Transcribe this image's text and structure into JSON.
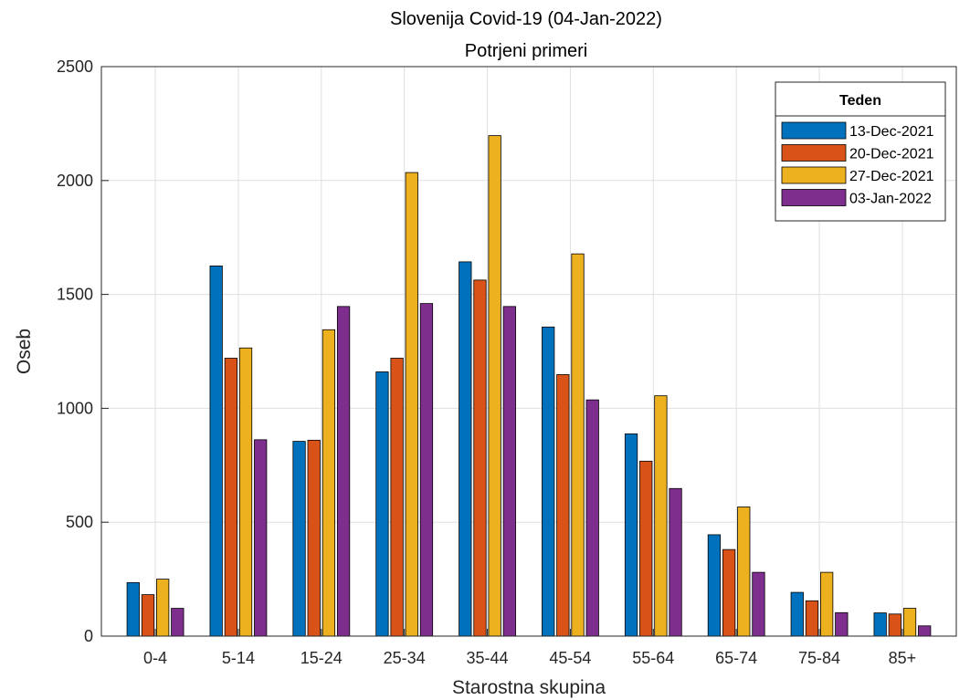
{
  "chart_data": {
    "type": "bar",
    "title": "Slovenija Covid-19 (04-Jan-2022)",
    "subtitle": "Potrjeni primeri",
    "xlabel": "Starostna skupina",
    "ylabel": "Oseb",
    "categories": [
      "0-4",
      "5-14",
      "15-24",
      "25-34",
      "35-44",
      "45-54",
      "55-64",
      "65-74",
      "75-84",
      "85+"
    ],
    "ylim": [
      0,
      2500
    ],
    "yticks": [
      0,
      500,
      1000,
      1500,
      2000,
      2500
    ],
    "grid": true,
    "legend": {
      "title": "Teden",
      "placement": "top-right"
    },
    "series": [
      {
        "name": "13-Dec-2021",
        "color": "#0072BD",
        "values": [
          235,
          1625,
          855,
          1160,
          1643,
          1357,
          888,
          445,
          192,
          102
        ]
      },
      {
        "name": "20-Dec-2021",
        "color": "#D95319",
        "values": [
          182,
          1220,
          860,
          1220,
          1563,
          1148,
          768,
          380,
          155,
          97
        ]
      },
      {
        "name": "27-Dec-2021",
        "color": "#EDB120",
        "values": [
          250,
          1265,
          1345,
          2035,
          2197,
          1678,
          1055,
          567,
          280,
          122
        ]
      },
      {
        "name": "03-Jan-2022",
        "color": "#7E2F8E",
        "values": [
          122,
          862,
          1447,
          1460,
          1447,
          1037,
          648,
          280,
          103,
          45
        ]
      }
    ]
  }
}
